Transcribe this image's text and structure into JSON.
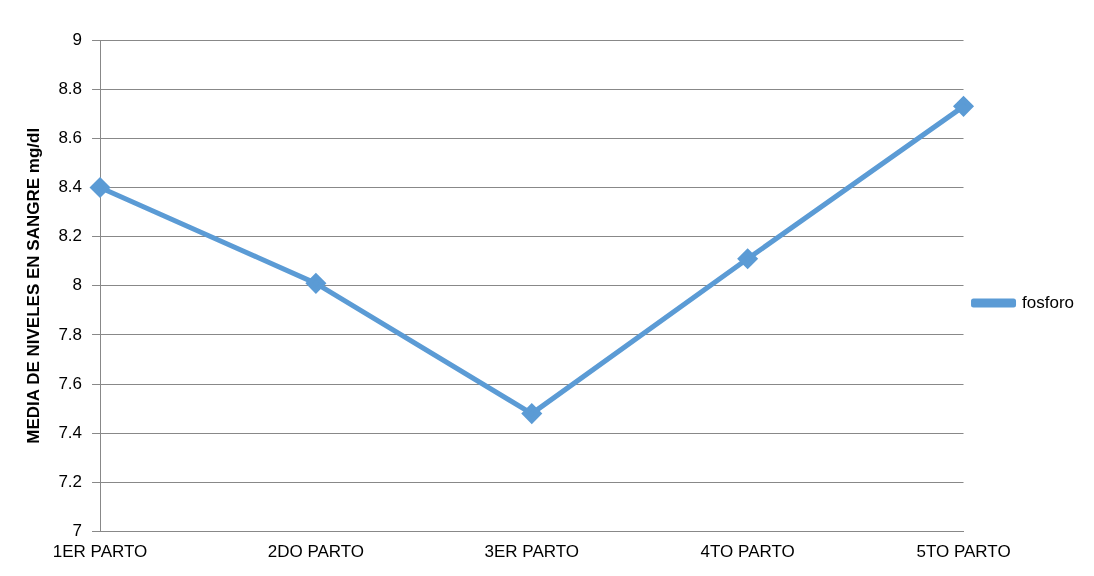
{
  "chart_data": {
    "type": "line",
    "ylabel": "MEDIA DE NIVELES EN SANGRE mg/dl",
    "categories": [
      "1ER PARTO",
      "2DO PARTO",
      "3ER PARTO",
      "4TO PARTO",
      "5TO PARTO"
    ],
    "series": [
      {
        "name": "fosforo",
        "color": "#5b9bd5",
        "values": [
          8.4,
          8.01,
          7.48,
          8.11,
          8.73
        ]
      }
    ],
    "ylim": [
      7,
      9
    ],
    "yticks": [
      7,
      7.2,
      7.4,
      7.6,
      7.8,
      8,
      8.2,
      8.4,
      8.6,
      8.8,
      9
    ],
    "grid": "y",
    "legend": "right",
    "marker": "diamond"
  }
}
